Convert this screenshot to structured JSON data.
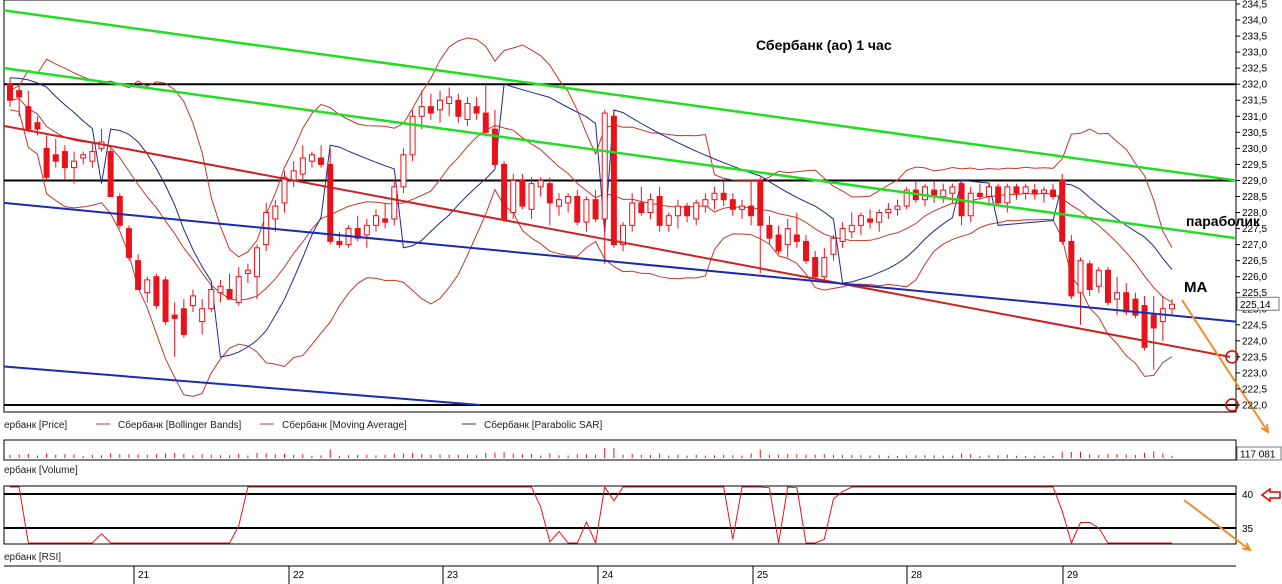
{
  "chart_title": "Сбербанк (ао)   1 час",
  "annotations": {
    "parabolic": "параболик",
    "ma": "MA"
  },
  "price_axis": {
    "ticks": [
      "234,5",
      "234,0",
      "233,5",
      "233,0",
      "232,5",
      "232,0",
      "231,5",
      "231,0",
      "230,5",
      "230,0",
      "229,5",
      "229,0",
      "228,5",
      "228,0",
      "227,5",
      "227,0",
      "226,5",
      "226,0",
      "225,5",
      "225,0",
      "224,5",
      "224,0",
      "223,5",
      "223,0",
      "222,5",
      "222,0"
    ],
    "last_price": "225,14"
  },
  "volume_axis": {
    "last_value": "117 081"
  },
  "rsi_axis": {
    "ticks": [
      "40",
      "35"
    ]
  },
  "legend": {
    "price": "ербанк [Price]",
    "bollinger": "Сбербанк [Bollinger Bands]",
    "ma": "Сбербанк [Moving Average]",
    "sar": "Сбербанк [Parabolic SAR]",
    "volume": "ербанк [Volume]",
    "rsi": "ербанк [RSI]"
  },
  "date_axis": [
    "21",
    "22",
    "23",
    "24",
    "25",
    "28",
    "29"
  ],
  "colors": {
    "candle": "#e8121a",
    "bollinger": "#c0392b",
    "sar": "#1f2a8c",
    "trend_green": "#22dd22",
    "trend_red": "#cc2222",
    "trend_blue": "#1a2bb0",
    "projection": "#f08c2a",
    "level": "#000000"
  },
  "chart_data": {
    "type": "candlestick",
    "title": "Сбербанк (ао)   1 час",
    "ylim": [
      221.8,
      234.6
    ],
    "x_categories": [
      "21",
      "22",
      "23",
      "24",
      "25",
      "28",
      "29"
    ],
    "candles": [
      {
        "o": 232.0,
        "h": 232.2,
        "l": 231.3,
        "c": 231.5
      },
      {
        "o": 231.8,
        "h": 232.0,
        "l": 231.0,
        "c": 231.6
      },
      {
        "o": 231.3,
        "h": 231.8,
        "l": 230.5,
        "c": 230.6
      },
      {
        "o": 230.8,
        "h": 231.0,
        "l": 230.4,
        "c": 230.6
      },
      {
        "o": 230.0,
        "h": 230.4,
        "l": 229.0,
        "c": 229.1
      },
      {
        "o": 229.8,
        "h": 230.3,
        "l": 229.4,
        "c": 229.6
      },
      {
        "o": 229.9,
        "h": 230.1,
        "l": 229.0,
        "c": 229.4
      },
      {
        "o": 229.4,
        "h": 229.9,
        "l": 228.9,
        "c": 229.6
      },
      {
        "o": 229.7,
        "h": 229.9,
        "l": 229.5,
        "c": 229.8
      },
      {
        "o": 229.6,
        "h": 230.2,
        "l": 229.4,
        "c": 229.9
      },
      {
        "o": 230.0,
        "h": 230.6,
        "l": 229.9,
        "c": 230.2
      },
      {
        "o": 229.9,
        "h": 230.0,
        "l": 228.5,
        "c": 228.5
      },
      {
        "o": 228.5,
        "h": 228.6,
        "l": 227.5,
        "c": 227.6
      },
      {
        "o": 227.5,
        "h": 227.6,
        "l": 226.5,
        "c": 226.6
      },
      {
        "o": 226.5,
        "h": 226.7,
        "l": 225.6,
        "c": 225.6
      },
      {
        "o": 225.5,
        "h": 226.0,
        "l": 225.2,
        "c": 225.9
      },
      {
        "o": 226.0,
        "h": 226.1,
        "l": 225.0,
        "c": 225.1
      },
      {
        "o": 225.9,
        "h": 226.0,
        "l": 224.5,
        "c": 224.6
      },
      {
        "o": 224.8,
        "h": 225.2,
        "l": 223.5,
        "c": 224.7
      },
      {
        "o": 225.0,
        "h": 225.3,
        "l": 224.1,
        "c": 224.2
      },
      {
        "o": 225.1,
        "h": 225.6,
        "l": 224.9,
        "c": 225.4
      },
      {
        "o": 224.6,
        "h": 225.3,
        "l": 224.2,
        "c": 225.0
      },
      {
        "o": 225.0,
        "h": 225.8,
        "l": 224.9,
        "c": 225.6
      },
      {
        "o": 225.5,
        "h": 225.9,
        "l": 225.2,
        "c": 225.7
      },
      {
        "o": 225.6,
        "h": 226.1,
        "l": 225.4,
        "c": 225.3
      },
      {
        "o": 225.2,
        "h": 226.3,
        "l": 225.1,
        "c": 226.0
      },
      {
        "o": 226.1,
        "h": 226.4,
        "l": 225.8,
        "c": 226.2
      },
      {
        "o": 226.0,
        "h": 227.0,
        "l": 225.3,
        "c": 226.9
      },
      {
        "o": 227.0,
        "h": 228.3,
        "l": 226.8,
        "c": 228.0
      },
      {
        "o": 227.8,
        "h": 228.4,
        "l": 227.4,
        "c": 228.2
      },
      {
        "o": 228.3,
        "h": 229.3,
        "l": 228.0,
        "c": 229.1
      },
      {
        "o": 229.0,
        "h": 229.6,
        "l": 228.8,
        "c": 229.3
      },
      {
        "o": 229.2,
        "h": 230.1,
        "l": 229.0,
        "c": 229.7
      },
      {
        "o": 229.6,
        "h": 229.9,
        "l": 229.4,
        "c": 229.8
      },
      {
        "o": 229.7,
        "h": 230.1,
        "l": 229.4,
        "c": 229.5
      },
      {
        "o": 229.5,
        "h": 230.0,
        "l": 227.0,
        "c": 227.1
      },
      {
        "o": 227.1,
        "h": 227.4,
        "l": 226.9,
        "c": 227.0
      },
      {
        "o": 227.0,
        "h": 227.6,
        "l": 226.9,
        "c": 227.5
      },
      {
        "o": 227.5,
        "h": 227.9,
        "l": 227.1,
        "c": 227.2
      },
      {
        "o": 227.3,
        "h": 227.8,
        "l": 226.9,
        "c": 227.6
      },
      {
        "o": 227.6,
        "h": 228.1,
        "l": 227.4,
        "c": 227.9
      },
      {
        "o": 227.8,
        "h": 228.3,
        "l": 227.5,
        "c": 227.7
      },
      {
        "o": 227.8,
        "h": 229.0,
        "l": 227.6,
        "c": 228.8
      },
      {
        "o": 228.8,
        "h": 230.0,
        "l": 228.6,
        "c": 229.8
      },
      {
        "o": 229.8,
        "h": 231.2,
        "l": 229.6,
        "c": 231.0
      },
      {
        "o": 231.0,
        "h": 231.8,
        "l": 230.6,
        "c": 231.3
      },
      {
        "o": 231.3,
        "h": 231.7,
        "l": 230.9,
        "c": 231.1
      },
      {
        "o": 231.2,
        "h": 231.8,
        "l": 230.8,
        "c": 231.5
      },
      {
        "o": 231.4,
        "h": 231.9,
        "l": 231.0,
        "c": 231.6
      },
      {
        "o": 231.5,
        "h": 231.7,
        "l": 230.8,
        "c": 231.0
      },
      {
        "o": 230.9,
        "h": 231.6,
        "l": 230.7,
        "c": 231.4
      },
      {
        "o": 231.3,
        "h": 231.6,
        "l": 230.9,
        "c": 231.1
      },
      {
        "o": 231.1,
        "h": 232.0,
        "l": 230.4,
        "c": 230.5
      },
      {
        "o": 230.6,
        "h": 231.2,
        "l": 229.4,
        "c": 229.5
      },
      {
        "o": 229.5,
        "h": 229.6,
        "l": 227.7,
        "c": 227.8
      },
      {
        "o": 228.0,
        "h": 229.2,
        "l": 227.8,
        "c": 229.0
      },
      {
        "o": 229.0,
        "h": 229.2,
        "l": 228.1,
        "c": 228.2
      },
      {
        "o": 228.1,
        "h": 229.1,
        "l": 227.8,
        "c": 228.9
      },
      {
        "o": 228.8,
        "h": 229.1,
        "l": 228.5,
        "c": 229.0
      },
      {
        "o": 228.9,
        "h": 229.1,
        "l": 227.6,
        "c": 228.3
      },
      {
        "o": 228.2,
        "h": 228.6,
        "l": 227.9,
        "c": 228.4
      },
      {
        "o": 228.3,
        "h": 228.6,
        "l": 228.0,
        "c": 228.5
      },
      {
        "o": 228.5,
        "h": 228.7,
        "l": 227.6,
        "c": 227.7
      },
      {
        "o": 227.7,
        "h": 228.5,
        "l": 227.4,
        "c": 228.4
      },
      {
        "o": 228.4,
        "h": 228.7,
        "l": 227.7,
        "c": 227.8
      },
      {
        "o": 227.8,
        "h": 231.2,
        "l": 226.4,
        "c": 231.1
      },
      {
        "o": 231.0,
        "h": 231.2,
        "l": 226.9,
        "c": 227.0
      },
      {
        "o": 227.0,
        "h": 227.7,
        "l": 226.8,
        "c": 227.6
      },
      {
        "o": 227.6,
        "h": 228.6,
        "l": 227.4,
        "c": 228.3
      },
      {
        "o": 228.3,
        "h": 228.8,
        "l": 227.9,
        "c": 228.0
      },
      {
        "o": 228.0,
        "h": 228.6,
        "l": 227.8,
        "c": 228.4
      },
      {
        "o": 228.5,
        "h": 228.8,
        "l": 227.4,
        "c": 227.6
      },
      {
        "o": 227.6,
        "h": 228.0,
        "l": 227.4,
        "c": 227.9
      },
      {
        "o": 227.9,
        "h": 228.4,
        "l": 227.5,
        "c": 228.2
      },
      {
        "o": 228.2,
        "h": 228.3,
        "l": 227.7,
        "c": 227.9
      },
      {
        "o": 227.8,
        "h": 228.4,
        "l": 227.6,
        "c": 228.3
      },
      {
        "o": 228.2,
        "h": 228.6,
        "l": 228.0,
        "c": 228.4
      },
      {
        "o": 228.4,
        "h": 228.8,
        "l": 228.1,
        "c": 228.6
      },
      {
        "o": 228.6,
        "h": 229.0,
        "l": 228.2,
        "c": 228.4
      },
      {
        "o": 228.4,
        "h": 228.6,
        "l": 227.9,
        "c": 228.1
      },
      {
        "o": 228.1,
        "h": 228.4,
        "l": 227.8,
        "c": 228.2
      },
      {
        "o": 228.2,
        "h": 229.0,
        "l": 227.6,
        "c": 227.9
      },
      {
        "o": 229.0,
        "h": 229.1,
        "l": 226.1,
        "c": 227.6
      },
      {
        "o": 227.6,
        "h": 227.9,
        "l": 227.0,
        "c": 227.2
      },
      {
        "o": 227.3,
        "h": 227.6,
        "l": 226.7,
        "c": 226.8
      },
      {
        "o": 227.0,
        "h": 227.8,
        "l": 226.6,
        "c": 227.5
      },
      {
        "o": 227.3,
        "h": 228.0,
        "l": 226.9,
        "c": 227.1
      },
      {
        "o": 227.1,
        "h": 227.3,
        "l": 226.4,
        "c": 226.5
      },
      {
        "o": 226.6,
        "h": 226.8,
        "l": 225.9,
        "c": 226.0
      },
      {
        "o": 226.0,
        "h": 226.9,
        "l": 225.8,
        "c": 226.6
      },
      {
        "o": 226.7,
        "h": 227.3,
        "l": 226.5,
        "c": 227.2
      },
      {
        "o": 227.1,
        "h": 227.7,
        "l": 226.9,
        "c": 227.5
      },
      {
        "o": 227.4,
        "h": 228.0,
        "l": 227.2,
        "c": 227.6
      },
      {
        "o": 227.6,
        "h": 228.0,
        "l": 227.3,
        "c": 227.9
      },
      {
        "o": 227.8,
        "h": 228.1,
        "l": 227.5,
        "c": 227.7
      },
      {
        "o": 227.7,
        "h": 228.1,
        "l": 227.4,
        "c": 228.0
      },
      {
        "o": 228.0,
        "h": 228.3,
        "l": 227.8,
        "c": 228.1
      },
      {
        "o": 228.1,
        "h": 228.4,
        "l": 227.9,
        "c": 228.2
      },
      {
        "o": 228.2,
        "h": 228.8,
        "l": 228.1,
        "c": 228.7
      },
      {
        "o": 228.7,
        "h": 229.0,
        "l": 228.3,
        "c": 228.4
      },
      {
        "o": 228.4,
        "h": 228.9,
        "l": 228.2,
        "c": 228.8
      },
      {
        "o": 228.7,
        "h": 229.0,
        "l": 228.3,
        "c": 228.5
      },
      {
        "o": 228.5,
        "h": 228.9,
        "l": 228.3,
        "c": 228.7
      },
      {
        "o": 228.6,
        "h": 228.9,
        "l": 228.3,
        "c": 228.8
      },
      {
        "o": 228.9,
        "h": 229.0,
        "l": 227.6,
        "c": 227.9
      },
      {
        "o": 227.9,
        "h": 228.8,
        "l": 227.7,
        "c": 228.6
      },
      {
        "o": 228.6,
        "h": 228.9,
        "l": 228.4,
        "c": 228.5
      },
      {
        "o": 228.5,
        "h": 228.9,
        "l": 228.2,
        "c": 228.8
      },
      {
        "o": 228.8,
        "h": 228.9,
        "l": 228.2,
        "c": 228.3
      },
      {
        "o": 228.3,
        "h": 228.9,
        "l": 228.0,
        "c": 228.8
      },
      {
        "o": 228.8,
        "h": 228.9,
        "l": 228.4,
        "c": 228.6
      },
      {
        "o": 228.6,
        "h": 228.9,
        "l": 228.4,
        "c": 228.8
      },
      {
        "o": 228.7,
        "h": 228.9,
        "l": 228.4,
        "c": 228.6
      },
      {
        "o": 228.6,
        "h": 228.8,
        "l": 228.3,
        "c": 228.7
      },
      {
        "o": 228.7,
        "h": 228.9,
        "l": 228.4,
        "c": 228.5
      },
      {
        "o": 229.0,
        "h": 229.2,
        "l": 227.0,
        "c": 227.1
      },
      {
        "o": 227.1,
        "h": 227.3,
        "l": 225.3,
        "c": 225.4
      },
      {
        "o": 225.5,
        "h": 226.6,
        "l": 224.5,
        "c": 226.5
      },
      {
        "o": 226.4,
        "h": 226.5,
        "l": 225.4,
        "c": 225.6
      },
      {
        "o": 225.7,
        "h": 226.3,
        "l": 225.5,
        "c": 226.2
      },
      {
        "o": 226.2,
        "h": 226.3,
        "l": 225.1,
        "c": 225.2
      },
      {
        "o": 225.3,
        "h": 226.0,
        "l": 224.8,
        "c": 225.5
      },
      {
        "o": 225.5,
        "h": 225.8,
        "l": 224.8,
        "c": 224.9
      },
      {
        "o": 225.3,
        "h": 225.5,
        "l": 224.7,
        "c": 224.8
      },
      {
        "o": 225.1,
        "h": 225.4,
        "l": 223.7,
        "c": 223.8
      },
      {
        "o": 224.8,
        "h": 225.4,
        "l": 223.1,
        "c": 224.4
      },
      {
        "o": 224.6,
        "h": 225.4,
        "l": 224.0,
        "c": 225.0
      },
      {
        "o": 225.0,
        "h": 225.3,
        "l": 224.8,
        "c": 225.14
      }
    ],
    "horizontal_levels": [
      232.0,
      229.0,
      222.0
    ],
    "rsi_levels": [
      40,
      35
    ]
  }
}
